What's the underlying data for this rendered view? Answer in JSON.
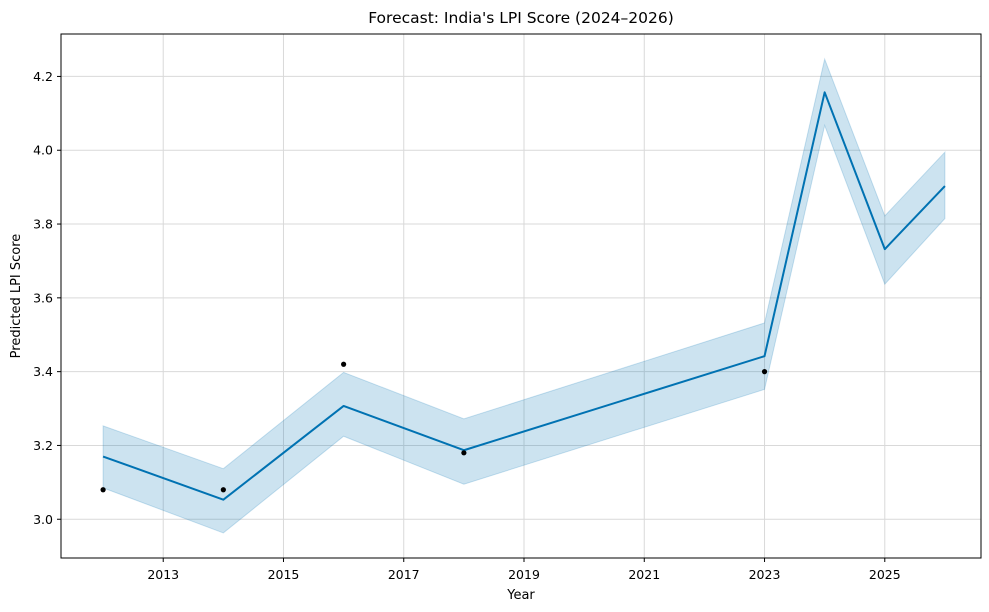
{
  "chart_data": {
    "type": "line",
    "title": "Forecast: India's LPI Score (2024–2026)",
    "xlabel": "Year",
    "ylabel": "Predicted LPI Score",
    "xlim": [
      2011.3,
      2026.6
    ],
    "ylim": [
      2.895,
      4.315
    ],
    "x_ticks": [
      2013,
      2015,
      2017,
      2019,
      2021,
      2023,
      2025
    ],
    "y_ticks": [
      3.0,
      3.2,
      3.4,
      3.6,
      3.8,
      4.0,
      4.2
    ],
    "y_tick_labels": [
      "3.0",
      "3.2",
      "3.4",
      "3.6",
      "3.8",
      "4.0",
      "4.2"
    ],
    "grid": true,
    "forecast": {
      "x": [
        2012,
        2014,
        2016,
        2018,
        2023,
        2024,
        2025,
        2026
      ],
      "yhat": [
        3.17,
        3.053,
        3.307,
        3.187,
        3.442,
        4.157,
        3.732,
        3.903
      ],
      "yhat_lower": [
        3.085,
        2.963,
        3.225,
        3.095,
        3.352,
        4.067,
        3.637,
        3.815
      ],
      "yhat_upper": [
        3.253,
        3.137,
        3.398,
        3.272,
        3.532,
        4.247,
        3.822,
        3.995
      ]
    },
    "observed": {
      "x": [
        2012,
        2014,
        2016,
        2018,
        2023
      ],
      "y": [
        3.08,
        3.08,
        3.42,
        3.18,
        3.4
      ]
    },
    "colors": {
      "line": "#0072b2",
      "band": "#0072b2",
      "points": "#000000",
      "grid": "#d9d9d9"
    }
  }
}
